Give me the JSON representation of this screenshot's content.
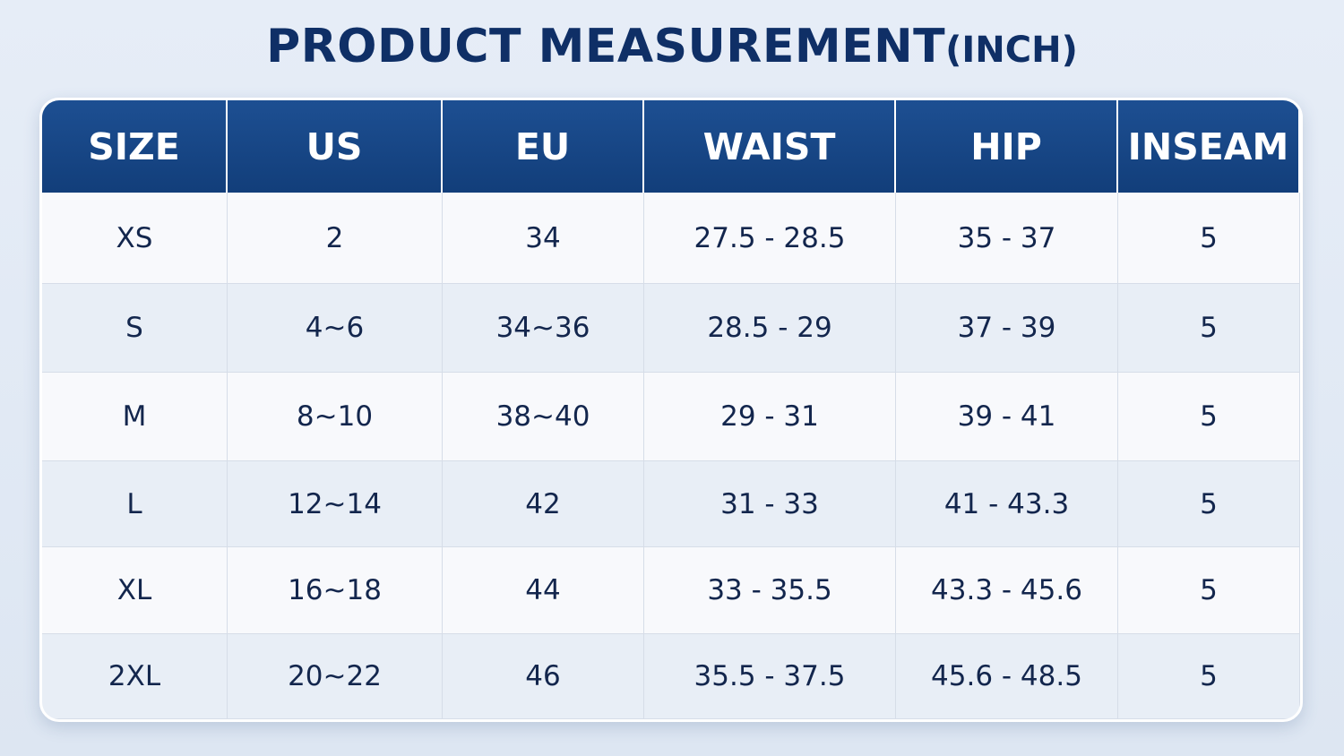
{
  "header": {
    "title": "PRODUCT MEASUREMENT",
    "unit": "(INCH)"
  },
  "table": {
    "columns": [
      "SIZE",
      "US",
      "EU",
      "WAIST",
      "HIP",
      "INSEAM"
    ],
    "rows": [
      [
        "XS",
        "2",
        "34",
        "27.5 - 28.5",
        "35 - 37",
        "5"
      ],
      [
        "S",
        "4~6",
        "34~36",
        "28.5 - 29",
        "37 - 39",
        "5"
      ],
      [
        "M",
        "8~10",
        "38~40",
        "29 - 31",
        "39 - 41",
        "5"
      ],
      [
        "L",
        "12~14",
        "42",
        "31 - 33",
        "41 - 43.3",
        "5"
      ],
      [
        "XL",
        "16~18",
        "44",
        "33 - 35.5",
        "43.3 - 45.6",
        "5"
      ],
      [
        "2XL",
        "20~22",
        "46",
        "35.5 - 37.5",
        "45.6 - 48.5",
        "5"
      ]
    ]
  }
}
